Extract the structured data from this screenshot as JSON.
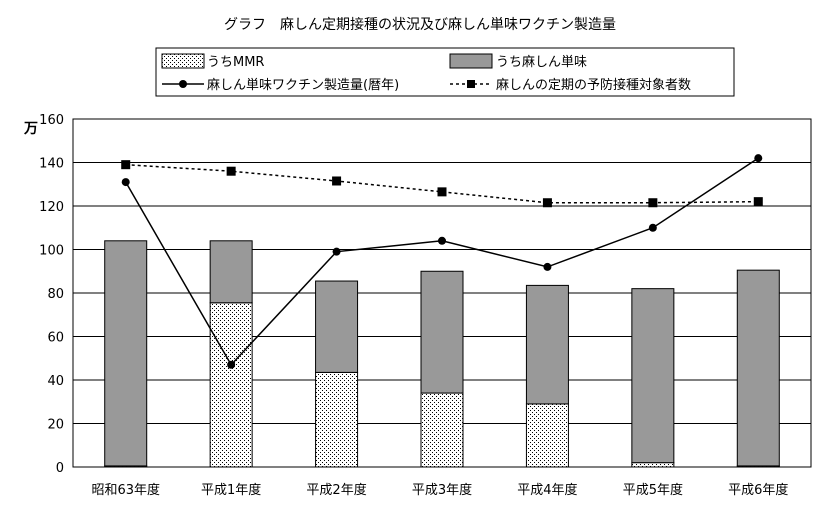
{
  "chart_data": {
    "type": "bar",
    "title": "グラフ　麻しん定期接種の状況及び麻しん単味ワクチン製造量",
    "ylabel": "万",
    "xlabel": "",
    "ylim": [
      0,
      160
    ],
    "yticks": [
      0,
      20,
      40,
      60,
      80,
      100,
      120,
      140,
      160
    ],
    "grid": true,
    "legend_position": "top",
    "categories": [
      "昭和63年度",
      "平成1年度",
      "平成2年度",
      "平成3年度",
      "平成4年度",
      "平成5年度",
      "平成6年度"
    ],
    "stacked_bars": [
      {
        "name": "うちMMR",
        "values": [
          0.5,
          75.5,
          43.5,
          34,
          29,
          2,
          0.5
        ],
        "color": "#ffffff",
        "pattern": "dotted"
      },
      {
        "name": "うち麻しん単味",
        "values": [
          103.5,
          28.5,
          42,
          56,
          54.5,
          80,
          90
        ],
        "color": "#999999",
        "pattern": "solid"
      }
    ],
    "lines": [
      {
        "name": "麻しん単味ワクチン製造量(暦年)",
        "values": [
          131,
          47,
          99,
          104,
          92,
          110,
          142
        ],
        "style": "solid",
        "marker": "circle",
        "color": "#000000"
      },
      {
        "name": "麻しんの定期の予防接種対象者数",
        "values": [
          139,
          136,
          131.5,
          126.5,
          121.5,
          121.5,
          122
        ],
        "style": "dashed",
        "marker": "square",
        "color": "#000000"
      }
    ]
  }
}
